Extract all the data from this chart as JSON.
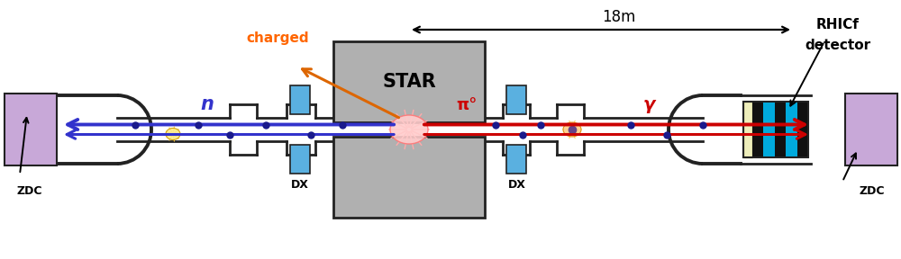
{
  "figsize": [
    10.0,
    2.88
  ],
  "dpi": 100,
  "bg_color": "#ffffff",
  "zdc_color": "#c8a8d8",
  "zdc_border": "#222222",
  "pipe_color": "#222222",
  "star_color": "#b0b0b0",
  "star_border": "#222222",
  "dx_color": "#5ab0e0",
  "dx_border": "#222222",
  "rhicf_cyan": "#00aadd",
  "rhicf_black": "#111111",
  "rhicf_yellow": "#eeeebb",
  "charged_color": "#ff6600",
  "n_color": "#3333cc",
  "gamma_color": "#cc0000",
  "pi0_color": "#cc0000",
  "dot_color": "#1a1a8c",
  "label_18m": "18m",
  "label_rhicf": "RHICf",
  "label_detector": "detector",
  "label_zdc": "ZDC",
  "label_star": "STAR",
  "label_dx": "DX",
  "label_charged": "charged",
  "label_n": "n",
  "label_pi0": "π°",
  "label_gamma": "γ"
}
